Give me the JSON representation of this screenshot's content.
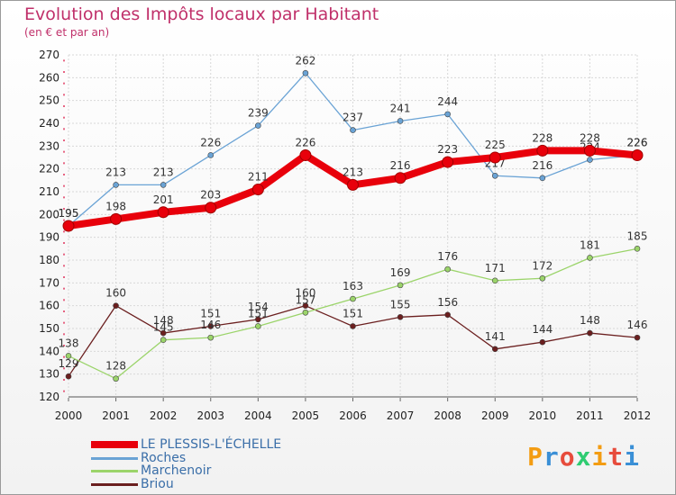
{
  "header": {
    "title": "Evolution des Impôts locaux par Habitant",
    "subtitle": "(en € et par an)"
  },
  "chart_data": {
    "type": "line",
    "title": "Evolution des Impôts locaux par Habitant",
    "subtitle": "(en € et par an)",
    "xlabel": "",
    "ylabel": "",
    "x": [
      2000,
      2001,
      2002,
      2003,
      2004,
      2005,
      2006,
      2007,
      2008,
      2009,
      2010,
      2011,
      2012
    ],
    "ylim": [
      120,
      270
    ],
    "yticks": [
      120,
      130,
      140,
      150,
      160,
      170,
      180,
      190,
      200,
      210,
      220,
      230,
      240,
      250,
      260,
      270
    ],
    "grid": true,
    "legend_position": "bottom-left",
    "series": [
      {
        "name": "LE PLESSIS-L'ÉCHELLE",
        "color": "#e8000b",
        "values": [
          195,
          198,
          201,
          203,
          211,
          226,
          213,
          216,
          223,
          225,
          228,
          228,
          226
        ]
      },
      {
        "name": "Roches",
        "color": "#6aa3d5",
        "values": [
          195,
          213,
          213,
          226,
          239,
          262,
          237,
          241,
          244,
          217,
          216,
          224,
          226
        ]
      },
      {
        "name": "Marchenoir",
        "color": "#9bd46a",
        "values": [
          138,
          128,
          145,
          146,
          151,
          157,
          163,
          169,
          176,
          171,
          172,
          181,
          185
        ]
      },
      {
        "name": "Briou",
        "color": "#6b1f1f",
        "values": [
          129,
          160,
          148,
          151,
          154,
          160,
          151,
          155,
          156,
          141,
          144,
          148,
          146
        ]
      }
    ]
  },
  "branding": {
    "logo_text": "Proxiti",
    "logo_colors": [
      "#f39c12",
      "#3a8fd6",
      "#e74c3c",
      "#2ecc71",
      "#f39c12",
      "#e74c3c",
      "#3a8fd6"
    ]
  }
}
